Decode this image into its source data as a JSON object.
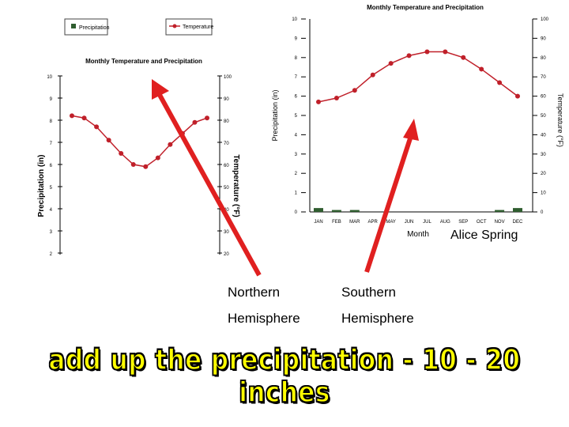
{
  "charts_title": "Monthly Temperature and Precipitation",
  "left_chart": {
    "legend": [
      "Precipitation",
      "Temperature"
    ],
    "title": "Monthly Temperature and Precipitation",
    "ylabel_left": "Precipitation (in)",
    "ylabel_right": "Temperature (°F)",
    "y_left_ticks": [
      "10",
      "9",
      "8",
      "7",
      "6",
      "5",
      "4",
      "3",
      "2"
    ],
    "y_right_ticks": [
      "100",
      "90",
      "80",
      "70",
      "60",
      "50",
      "40",
      "30",
      "20"
    ],
    "series_color": "#c0202a"
  },
  "right_chart": {
    "title": "Monthly Temperature and Precipitation",
    "xlabel": "Month",
    "ylabel_left": "Precipitation (in)",
    "ylabel_right": "Temperature (°F)",
    "y_left_ticks": [
      "10",
      "9",
      "8",
      "7",
      "6",
      "5",
      "4",
      "3",
      "2",
      "1",
      "0"
    ],
    "y_right_ticks": [
      "100",
      "90",
      "80",
      "70",
      "60",
      "50",
      "40",
      "30",
      "20",
      "10",
      "0"
    ],
    "months": [
      "JAN",
      "FEB",
      "MAR",
      "APR",
      "MAY",
      "JUN",
      "JUL",
      "AUG",
      "SEP",
      "OCT",
      "NOV",
      "DEC"
    ],
    "line_color": "#c0202a",
    "bar_color": "#2f5d2f"
  },
  "chart_data": [
    {
      "type": "line",
      "title": "Monthly Temperature and Precipitation",
      "ylabel": "Temperature (°F)",
      "ylim": [
        20,
        100
      ],
      "series": [
        {
          "name": "Temperature",
          "values": [
            82,
            81,
            77,
            71,
            65,
            60,
            59,
            63,
            69,
            74,
            79,
            81
          ]
        }
      ]
    },
    {
      "type": "bar+line",
      "title": "Monthly Temperature and Precipitation",
      "categories": [
        "JAN",
        "FEB",
        "MAR",
        "APR",
        "MAY",
        "JUN",
        "JUL",
        "AUG",
        "SEP",
        "OCT",
        "NOV",
        "DEC"
      ],
      "xlabel": "Month",
      "ylabel": "Precipitation (in)",
      "y2label": "Temperature (°F)",
      "ylim": [
        0,
        10
      ],
      "y2lim": [
        0,
        100
      ],
      "series": [
        {
          "name": "Precipitation",
          "axis": "left",
          "values": [
            0.2,
            0.1,
            0.1,
            0.0,
            0.0,
            0.0,
            0.0,
            0.0,
            0.0,
            0.0,
            0.1,
            0.2
          ]
        },
        {
          "name": "Temperature",
          "axis": "right",
          "values": [
            57,
            59,
            63,
            71,
            77,
            81,
            83,
            83,
            80,
            74,
            67,
            60
          ]
        }
      ]
    }
  ],
  "annotations": {
    "place": "Alice Spring",
    "northern_1": "Northern",
    "northern_2": "Hemisphere",
    "southern_1": "Southern",
    "southern_2": "Hemisphere",
    "arrow_color": "#e02020"
  },
  "banner": {
    "text": "add up the precipitation - 10 - 20 inches",
    "color": "#ffff00"
  }
}
